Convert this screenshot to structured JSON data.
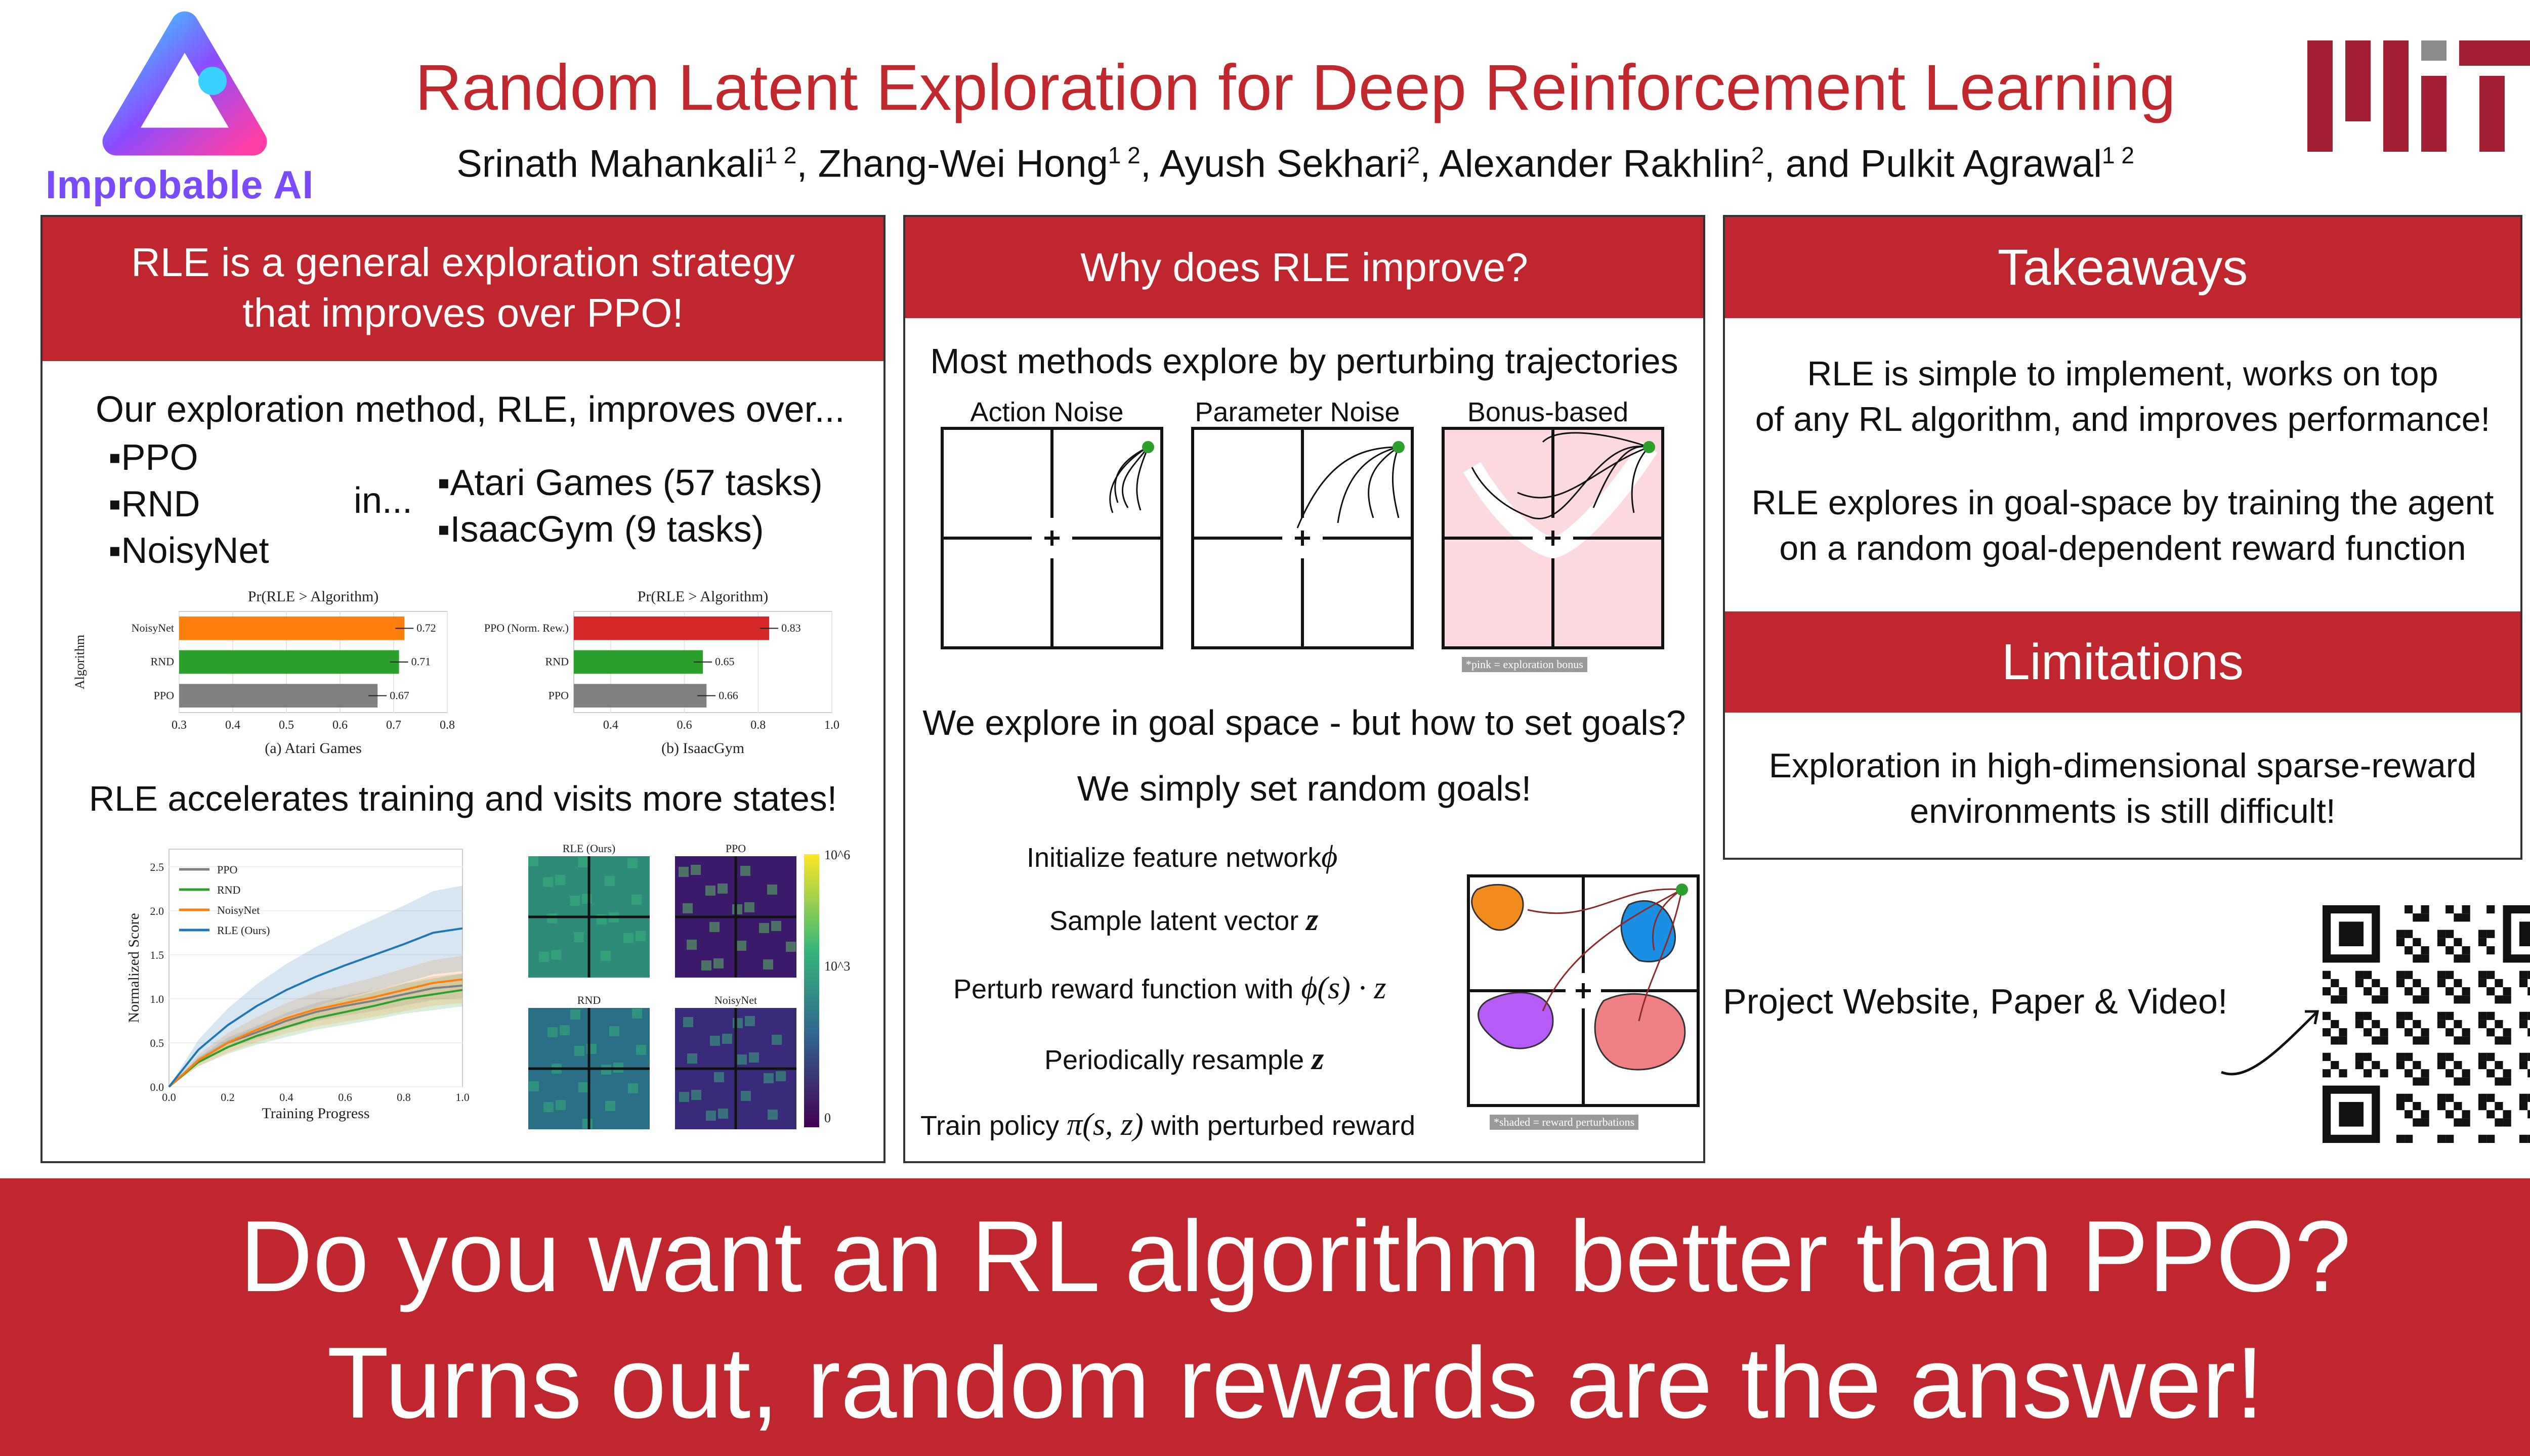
{
  "header": {
    "title": "Random Latent Exploration for Deep Reinforcement Learning",
    "authors": [
      {
        "name": "Srinath Mahankali",
        "aff": "1 2"
      },
      {
        "name": "Zhang-Wei Hong",
        "aff": "1 2"
      },
      {
        "name": "Ayush Sekhari",
        "aff": "2"
      },
      {
        "name": "Alexander Rakhlin",
        "aff": "2"
      },
      {
        "name": "Pulkit Agrawal",
        "aff": "1 2"
      }
    ],
    "authors_conj": "and",
    "lab_logo_text": "Improbable AI",
    "lab_logo_icon": "improbable-ai-logo-icon",
    "institution_logo": "mit-logo"
  },
  "colors": {
    "accent": "#bf262e",
    "ppo": "#808080",
    "rnd": "#2ca02c",
    "noisynet": "#ff7f0e",
    "rle": "#1f77b4",
    "pink_bg": "#fbd9df"
  },
  "panel1": {
    "heading_line1": "RLE is a general exploration strategy",
    "heading_line2": "that improves over PPO!",
    "intro": "Our exploration method, RLE, improves over...",
    "baselines": [
      "▪PPO",
      "▪RND",
      "▪NoisyNet"
    ],
    "in_word": "in...",
    "domains": [
      "▪Atari Games (57 tasks)",
      "▪IsaacGym (9 tasks)"
    ],
    "section2": "RLE accelerates training and visits more states!"
  },
  "panel2": {
    "heading": "Why does RLE improve?",
    "intro": "Most methods explore by perturbing trajectories",
    "diagram_titles": [
      "Action Noise",
      "Parameter Noise",
      "Bonus-based"
    ],
    "bonus_note": "*pink = exploration bonus",
    "question": "We explore in goal space - but how to set goals?",
    "answer": "We simply set random goals!",
    "steps": [
      {
        "text": "Initialize feature network",
        "math": "ϕ"
      },
      {
        "text": "Sample latent vector",
        "math": "z"
      },
      {
        "text": "Perturb reward function with",
        "math": "ϕ(s) · z"
      },
      {
        "text": "Periodically resample",
        "math": "z"
      },
      {
        "text": "Train policy",
        "math": "π(s, z)",
        "suffix": "with perturbed reward"
      }
    ],
    "shaded_note": "*shaded = reward perturbations"
  },
  "panel3": {
    "takeaways_heading": "Takeaways",
    "takeaway1_line1": "RLE is simple to implement, works on top",
    "takeaway1_line2": "of any RL algorithm, and improves performance!",
    "takeaway2_line1": "RLE explores in goal-space by training the agent",
    "takeaway2_line2": "on a random goal-dependent reward function",
    "limitations_heading": "Limitations",
    "limitation_line1": "Exploration in high-dimensional sparse-reward",
    "limitation_line2": "environments is still difficult!"
  },
  "links": {
    "project_text": "Project Website, Paper & Video!",
    "qr_icon": "qr-code-icon"
  },
  "banner": {
    "line1": "Do you want an RL algorithm better than PPO?",
    "line2": "Turns out, random rewards are the answer!"
  },
  "chart_data": [
    {
      "type": "bar",
      "orientation": "horizontal",
      "title": "Pr(RLE > Algorithm)",
      "subtitle": "(a) Atari Games",
      "ylabel": "Algorithm",
      "categories": [
        "NoisyNet",
        "RND",
        "PPO"
      ],
      "values": [
        0.72,
        0.71,
        0.67
      ],
      "value_labels": [
        "0.72",
        "0.71",
        "0.67"
      ],
      "colors": [
        "#ff7f0e",
        "#2ca02c",
        "#808080"
      ],
      "xlim": [
        0.3,
        0.8
      ],
      "xticks": [
        "0.3",
        "0.4",
        "0.5",
        "0.6",
        "0.7",
        "0.8"
      ]
    },
    {
      "type": "bar",
      "orientation": "horizontal",
      "title": "Pr(RLE > Algorithm)",
      "subtitle": "(b) IsaacGym",
      "categories": [
        "PPO (Norm. Rew.)",
        "RND",
        "PPO"
      ],
      "values": [
        0.83,
        0.65,
        0.66
      ],
      "value_labels": [
        "0.83",
        "0.65",
        "0.66"
      ],
      "colors": [
        "#d62728",
        "#2ca02c",
        "#808080"
      ],
      "xlim": [
        0.3,
        1.0
      ],
      "xticks": [
        "0.4",
        "0.6",
        "0.8",
        "1.0"
      ]
    },
    {
      "type": "line",
      "xlabel": "Training Progress",
      "ylabel": "Normalized Score",
      "xlim": [
        0.0,
        1.0
      ],
      "ylim": [
        0.0,
        2.7
      ],
      "xticks": [
        "0.0",
        "0.2",
        "0.4",
        "0.6",
        "0.8",
        "1.0"
      ],
      "yticks": [
        "0.0",
        "0.5",
        "1.0",
        "1.5",
        "2.0",
        "2.5"
      ],
      "legend_position": "top-left",
      "x": [
        0.0,
        0.1,
        0.2,
        0.3,
        0.4,
        0.5,
        0.6,
        0.7,
        0.8,
        0.9,
        1.0
      ],
      "series": [
        {
          "name": "PPO",
          "color": "#808080",
          "values": [
            0.0,
            0.3,
            0.5,
            0.62,
            0.75,
            0.85,
            0.92,
            0.98,
            1.05,
            1.12,
            1.15
          ]
        },
        {
          "name": "RND",
          "color": "#2ca02c",
          "values": [
            0.0,
            0.28,
            0.45,
            0.58,
            0.68,
            0.78,
            0.85,
            0.92,
            1.0,
            1.05,
            1.1
          ]
        },
        {
          "name": "NoisyNet",
          "color": "#ff7f0e",
          "values": [
            0.0,
            0.3,
            0.5,
            0.65,
            0.78,
            0.88,
            0.95,
            1.02,
            1.1,
            1.18,
            1.22
          ]
        },
        {
          "name": "RLE (Ours)",
          "color": "#1f77b4",
          "values": [
            0.0,
            0.42,
            0.7,
            0.92,
            1.1,
            1.25,
            1.38,
            1.5,
            1.62,
            1.75,
            1.8
          ]
        }
      ]
    },
    {
      "type": "heatmap",
      "panels": [
        "RLE (Ours)",
        "PPO",
        "RND",
        "NoisyNet"
      ],
      "colorbar_ticks": [
        "10^6",
        "10^3",
        "0"
      ]
    }
  ]
}
